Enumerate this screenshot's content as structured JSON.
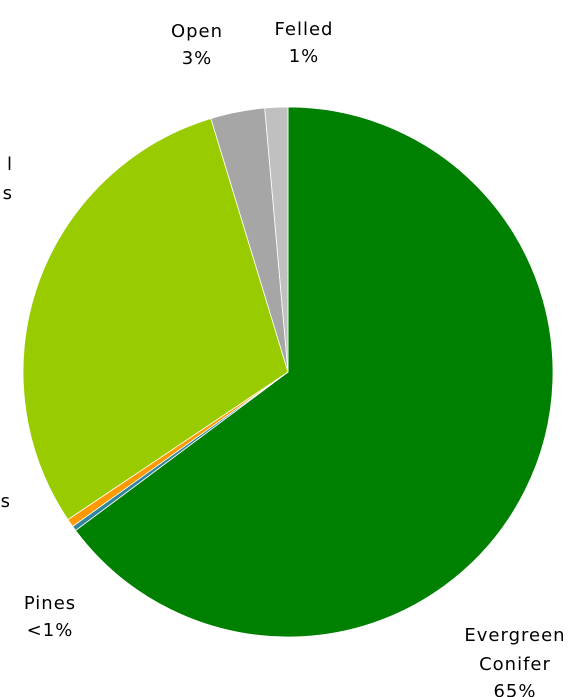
{
  "chart_data": {
    "type": "pie",
    "categories": [
      [
        "Evergreen",
        "Conifer"
      ],
      [
        "Pines"
      ],
      [
        "s"
      ],
      [
        "l",
        "s"
      ],
      [
        "Open"
      ],
      [
        "Felled"
      ]
    ],
    "values": [
      64.8,
      0.3,
      0.5,
      29.7,
      3.3,
      1.4
    ],
    "value_labels": [
      "65%",
      "<1%",
      null,
      null,
      "3%",
      "1%"
    ],
    "colors": [
      "#008000",
      "#31859c",
      "#ff9900",
      "#99cc00",
      "#a6a6a6",
      "#c0c0c0"
    ]
  }
}
